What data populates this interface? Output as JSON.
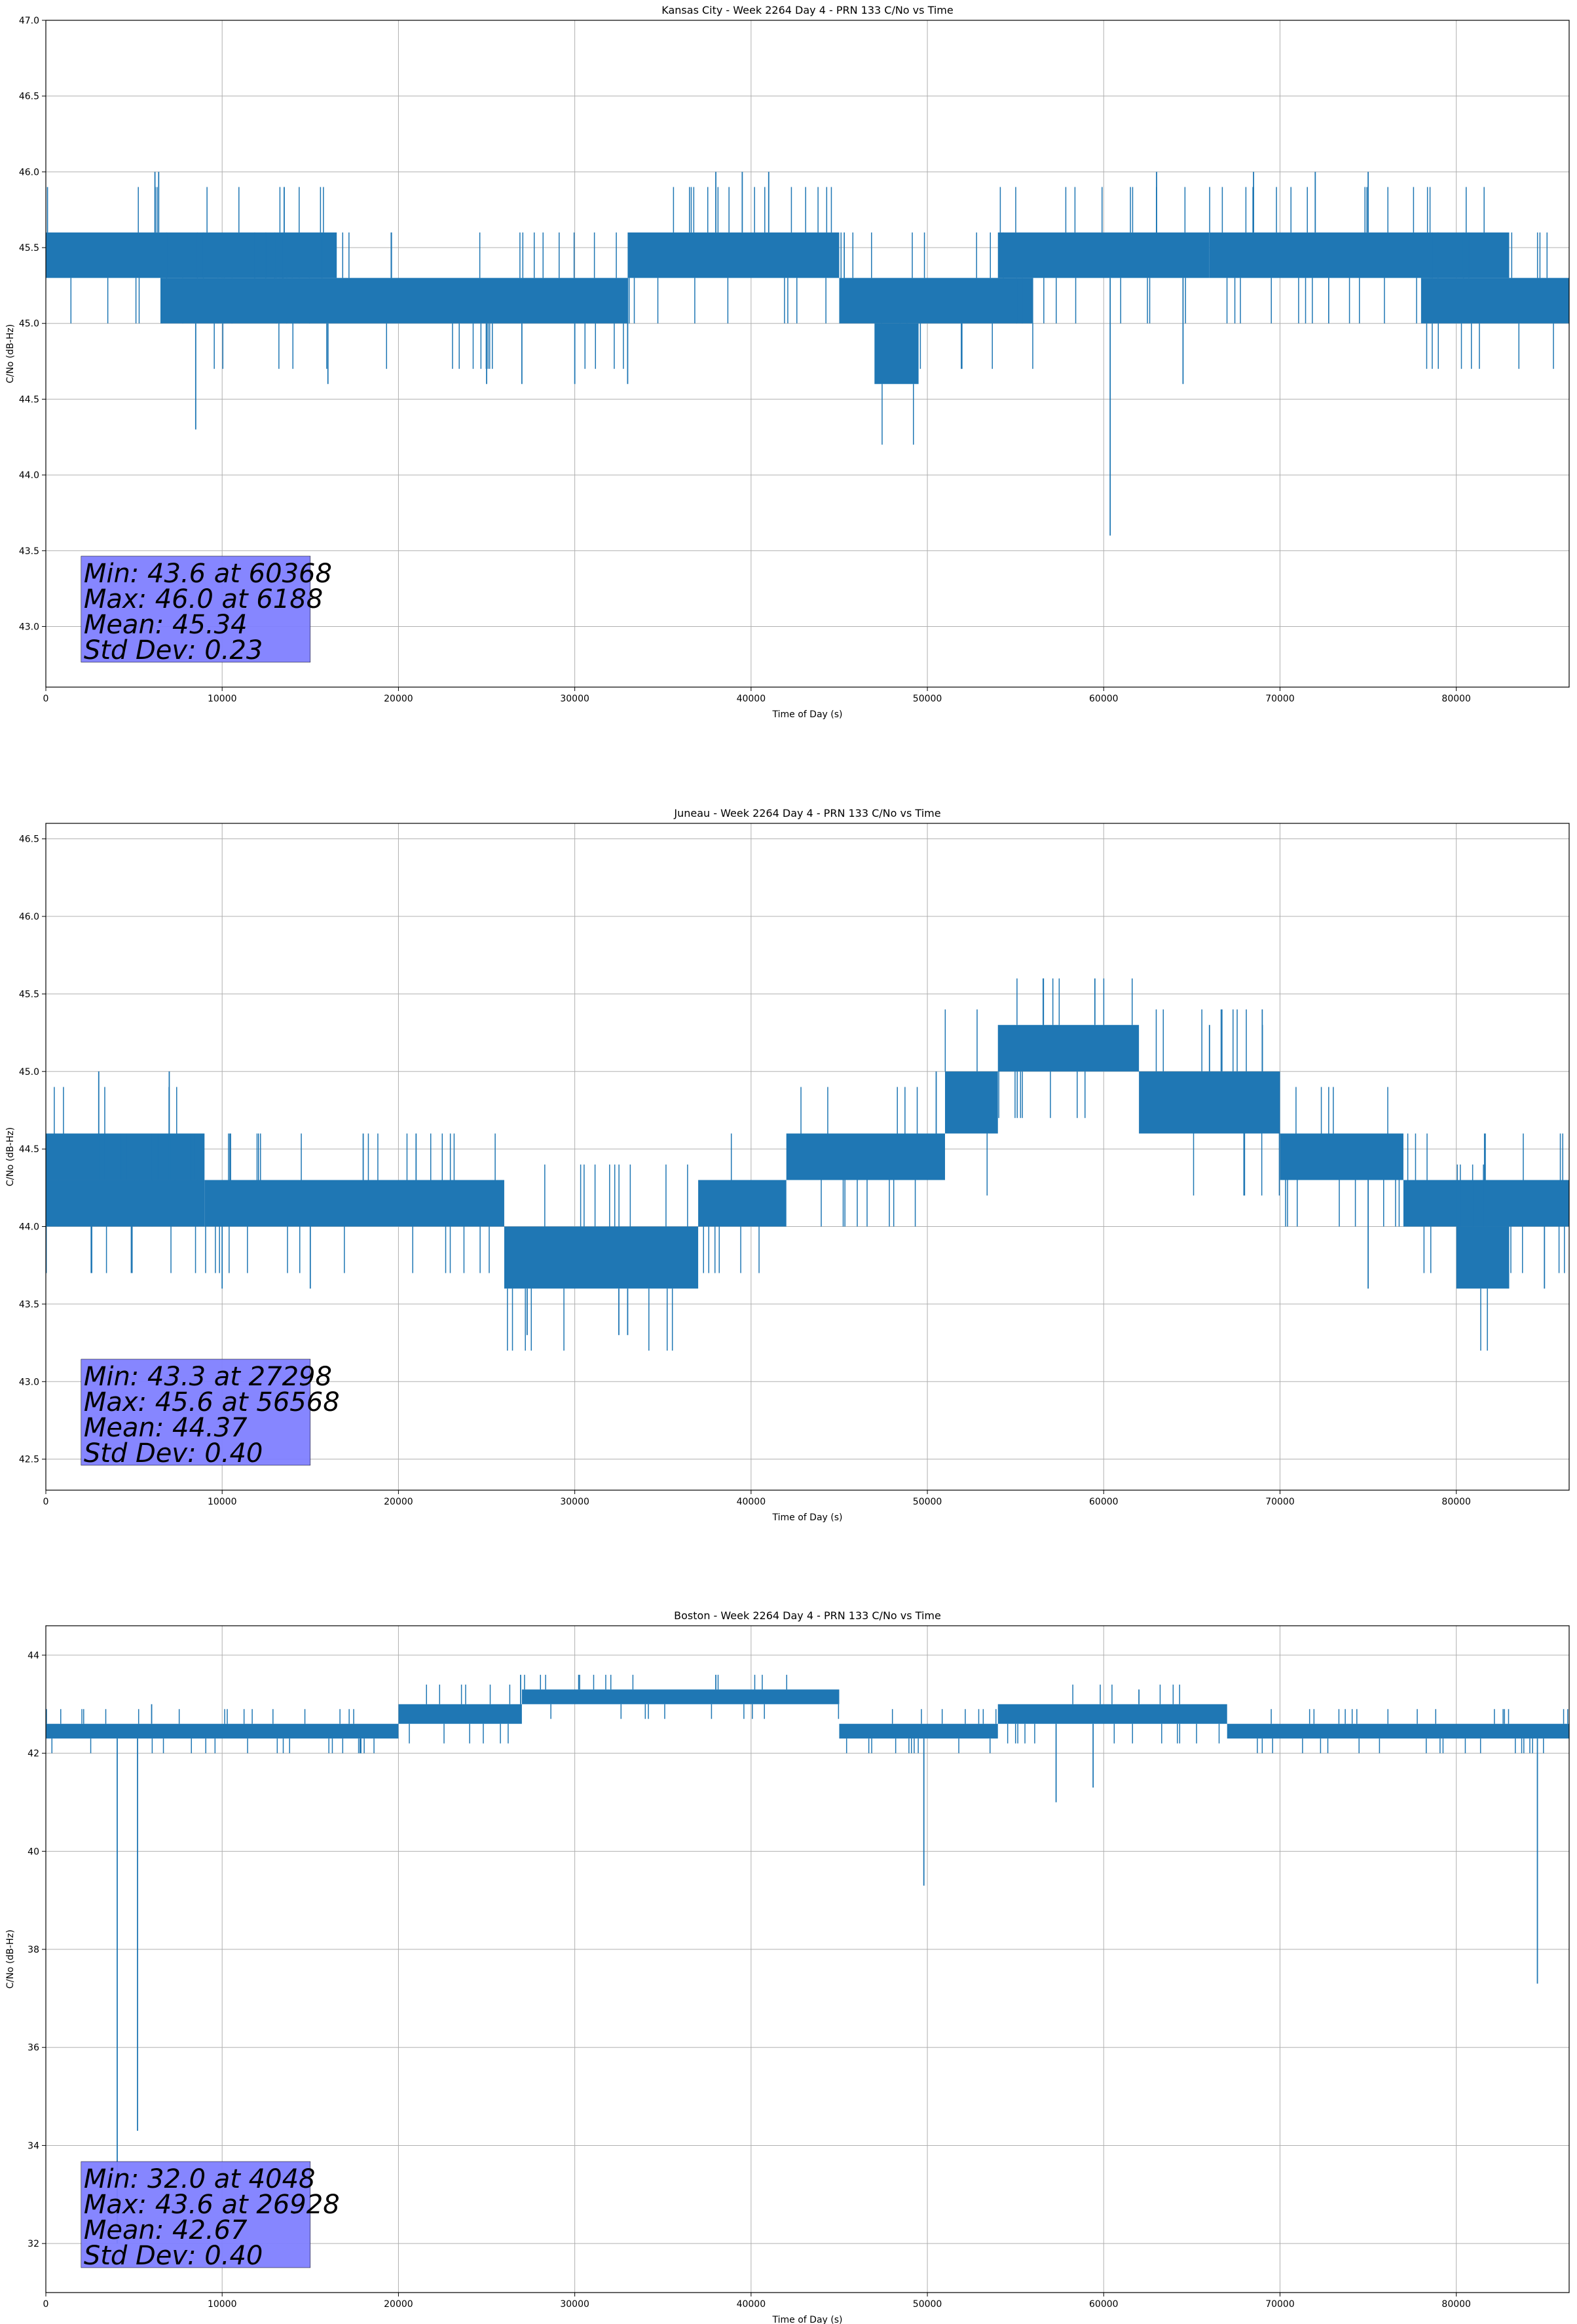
{
  "chart_data": [
    {
      "type": "line",
      "title": "Kansas City - Week 2264 Day 4 - PRN 133 C/No vs Time",
      "xlabel": "Time of Day (s)",
      "ylabel": "C/No (dB-Hz)",
      "xlim": [
        0,
        86400
      ],
      "ylim": [
        42.6,
        47.0
      ],
      "xticks": [
        0,
        10000,
        20000,
        30000,
        40000,
        50000,
        60000,
        70000,
        80000
      ],
      "yticks": [
        "43.0",
        "43.5",
        "44.0",
        "44.5",
        "45.0",
        "45.5",
        "46.0",
        "46.5",
        "47.0"
      ],
      "grid": true,
      "color": "#1f77b4",
      "stats_color": "#8080ff",
      "stats": [
        "Min: 43.6 at 60368",
        "Max: 46.0 at 6188",
        "Mean: 45.34",
        "Std Dev: 0.23"
      ],
      "levels": [
        45.0,
        45.3,
        45.6
      ],
      "segments": [
        {
          "x": [
            0,
            16500
          ],
          "band": [
            45.3,
            45.6
          ]
        },
        {
          "x": [
            6500,
            33000
          ],
          "band": [
            45.0,
            45.3
          ]
        },
        {
          "x": [
            33000,
            45000
          ],
          "band": [
            45.3,
            45.6
          ]
        },
        {
          "x": [
            45000,
            56000
          ],
          "band": [
            45.0,
            45.3
          ]
        },
        {
          "x": [
            47000,
            49500
          ],
          "band": [
            44.6,
            45.0
          ]
        },
        {
          "x": [
            54000,
            66000
          ],
          "band": [
            45.3,
            45.6
          ]
        },
        {
          "x": [
            66000,
            83000
          ],
          "band": [
            45.3,
            45.6
          ]
        },
        {
          "x": [
            78000,
            86400
          ],
          "band": [
            45.0,
            45.3
          ]
        }
      ],
      "spikes": [
        {
          "x": 6188,
          "y": 46.0
        },
        {
          "x": 6400,
          "y": 46.0
        },
        {
          "x": 8500,
          "y": 44.3
        },
        {
          "x": 16000,
          "y": 44.6
        },
        {
          "x": 25000,
          "y": 44.6
        },
        {
          "x": 27000,
          "y": 44.6
        },
        {
          "x": 30000,
          "y": 44.6
        },
        {
          "x": 33000,
          "y": 44.6
        },
        {
          "x": 38000,
          "y": 46.0
        },
        {
          "x": 39500,
          "y": 46.0
        },
        {
          "x": 41000,
          "y": 46.0
        },
        {
          "x": 60368,
          "y": 43.6
        },
        {
          "x": 63000,
          "y": 46.0
        },
        {
          "x": 64500,
          "y": 44.6
        },
        {
          "x": 68500,
          "y": 46.0
        },
        {
          "x": 72000,
          "y": 46.0
        },
        {
          "x": 75000,
          "y": 46.0
        }
      ]
    },
    {
      "type": "line",
      "title": "Juneau - Week 2264 Day 4 - PRN 133 C/No vs Time",
      "xlabel": "Time of Day (s)",
      "ylabel": "C/No (dB-Hz)",
      "xlim": [
        0,
        86400
      ],
      "ylim": [
        42.3,
        46.6
      ],
      "xticks": [
        0,
        10000,
        20000,
        30000,
        40000,
        50000,
        60000,
        70000,
        80000
      ],
      "yticks": [
        "42.5",
        "43.0",
        "43.5",
        "44.0",
        "44.5",
        "45.0",
        "45.5",
        "46.0",
        "46.5"
      ],
      "grid": true,
      "color": "#1f77b4",
      "stats_color": "#8080ff",
      "stats": [
        "Min: 43.3 at 27298",
        "Max: 45.6 at 56568",
        "Mean: 44.37",
        "Std Dev: 0.40"
      ],
      "segments": [
        {
          "x": [
            0,
            9000
          ],
          "band": [
            44.3,
            44.6
          ]
        },
        {
          "x": [
            0,
            9000
          ],
          "band": [
            44.0,
            44.3
          ]
        },
        {
          "x": [
            9000,
            26000
          ],
          "band": [
            44.0,
            44.3
          ]
        },
        {
          "x": [
            26000,
            37000
          ],
          "band": [
            43.6,
            44.0
          ]
        },
        {
          "x": [
            37000,
            42000
          ],
          "band": [
            44.0,
            44.3
          ]
        },
        {
          "x": [
            42000,
            51000
          ],
          "band": [
            44.3,
            44.6
          ]
        },
        {
          "x": [
            51000,
            54000
          ],
          "band": [
            44.6,
            45.0
          ]
        },
        {
          "x": [
            54000,
            62000
          ],
          "band": [
            45.0,
            45.3
          ]
        },
        {
          "x": [
            62000,
            70000
          ],
          "band": [
            44.6,
            45.0
          ]
        },
        {
          "x": [
            70000,
            77000
          ],
          "band": [
            44.3,
            44.6
          ]
        },
        {
          "x": [
            77000,
            86400
          ],
          "band": [
            44.0,
            44.3
          ]
        },
        {
          "x": [
            80000,
            83000
          ],
          "band": [
            43.6,
            44.0
          ]
        }
      ],
      "spikes": [
        {
          "x": 3000,
          "y": 45.0
        },
        {
          "x": 7000,
          "y": 45.0
        },
        {
          "x": 10000,
          "y": 43.6
        },
        {
          "x": 15000,
          "y": 43.6
        },
        {
          "x": 18000,
          "y": 44.6
        },
        {
          "x": 21000,
          "y": 44.6
        },
        {
          "x": 27298,
          "y": 43.3
        },
        {
          "x": 32500,
          "y": 43.3
        },
        {
          "x": 33000,
          "y": 43.3
        },
        {
          "x": 48000,
          "y": 44.6
        },
        {
          "x": 50500,
          "y": 45.0
        },
        {
          "x": 56568,
          "y": 45.6
        },
        {
          "x": 59500,
          "y": 45.6
        },
        {
          "x": 66000,
          "y": 45.3
        },
        {
          "x": 69000,
          "y": 45.3
        },
        {
          "x": 75000,
          "y": 43.6
        },
        {
          "x": 85000,
          "y": 43.6
        }
      ]
    },
    {
      "type": "line",
      "title": "Boston - Week 2264 Day 4 - PRN 133 C/No vs Time",
      "xlabel": "Time of Day (s)",
      "ylabel": "C/No (dB-Hz)",
      "xlim": [
        0,
        86400
      ],
      "ylim": [
        31.0,
        44.6
      ],
      "xticks": [
        0,
        10000,
        20000,
        30000,
        40000,
        50000,
        60000,
        70000,
        80000
      ],
      "yticks": [
        "32",
        "34",
        "36",
        "38",
        "40",
        "42",
        "44"
      ],
      "grid": true,
      "color": "#1f77b4",
      "stats_color": "#8080ff",
      "stats": [
        "Min: 32.0 at 4048",
        "Max: 43.6 at 26928",
        "Mean: 42.67",
        "Std Dev: 0.40"
      ],
      "segments": [
        {
          "x": [
            0,
            20000
          ],
          "band": [
            42.3,
            42.6
          ]
        },
        {
          "x": [
            20000,
            27000
          ],
          "band": [
            42.6,
            43.0
          ]
        },
        {
          "x": [
            27000,
            45000
          ],
          "band": [
            43.0,
            43.3
          ]
        },
        {
          "x": [
            45000,
            54000
          ],
          "band": [
            42.3,
            42.6
          ]
        },
        {
          "x": [
            54000,
            67000
          ],
          "band": [
            42.6,
            43.0
          ]
        },
        {
          "x": [
            67000,
            86400
          ],
          "band": [
            42.3,
            42.6
          ]
        }
      ],
      "spikes": [
        {
          "x": 4048,
          "y": 32.0
        },
        {
          "x": 5200,
          "y": 34.3
        },
        {
          "x": 6000,
          "y": 43.0
        },
        {
          "x": 26928,
          "y": 43.6
        },
        {
          "x": 38000,
          "y": 43.6
        },
        {
          "x": 49800,
          "y": 39.3
        },
        {
          "x": 57300,
          "y": 41.0
        },
        {
          "x": 59400,
          "y": 41.3
        },
        {
          "x": 62000,
          "y": 43.3
        },
        {
          "x": 84600,
          "y": 37.3
        }
      ]
    }
  ]
}
